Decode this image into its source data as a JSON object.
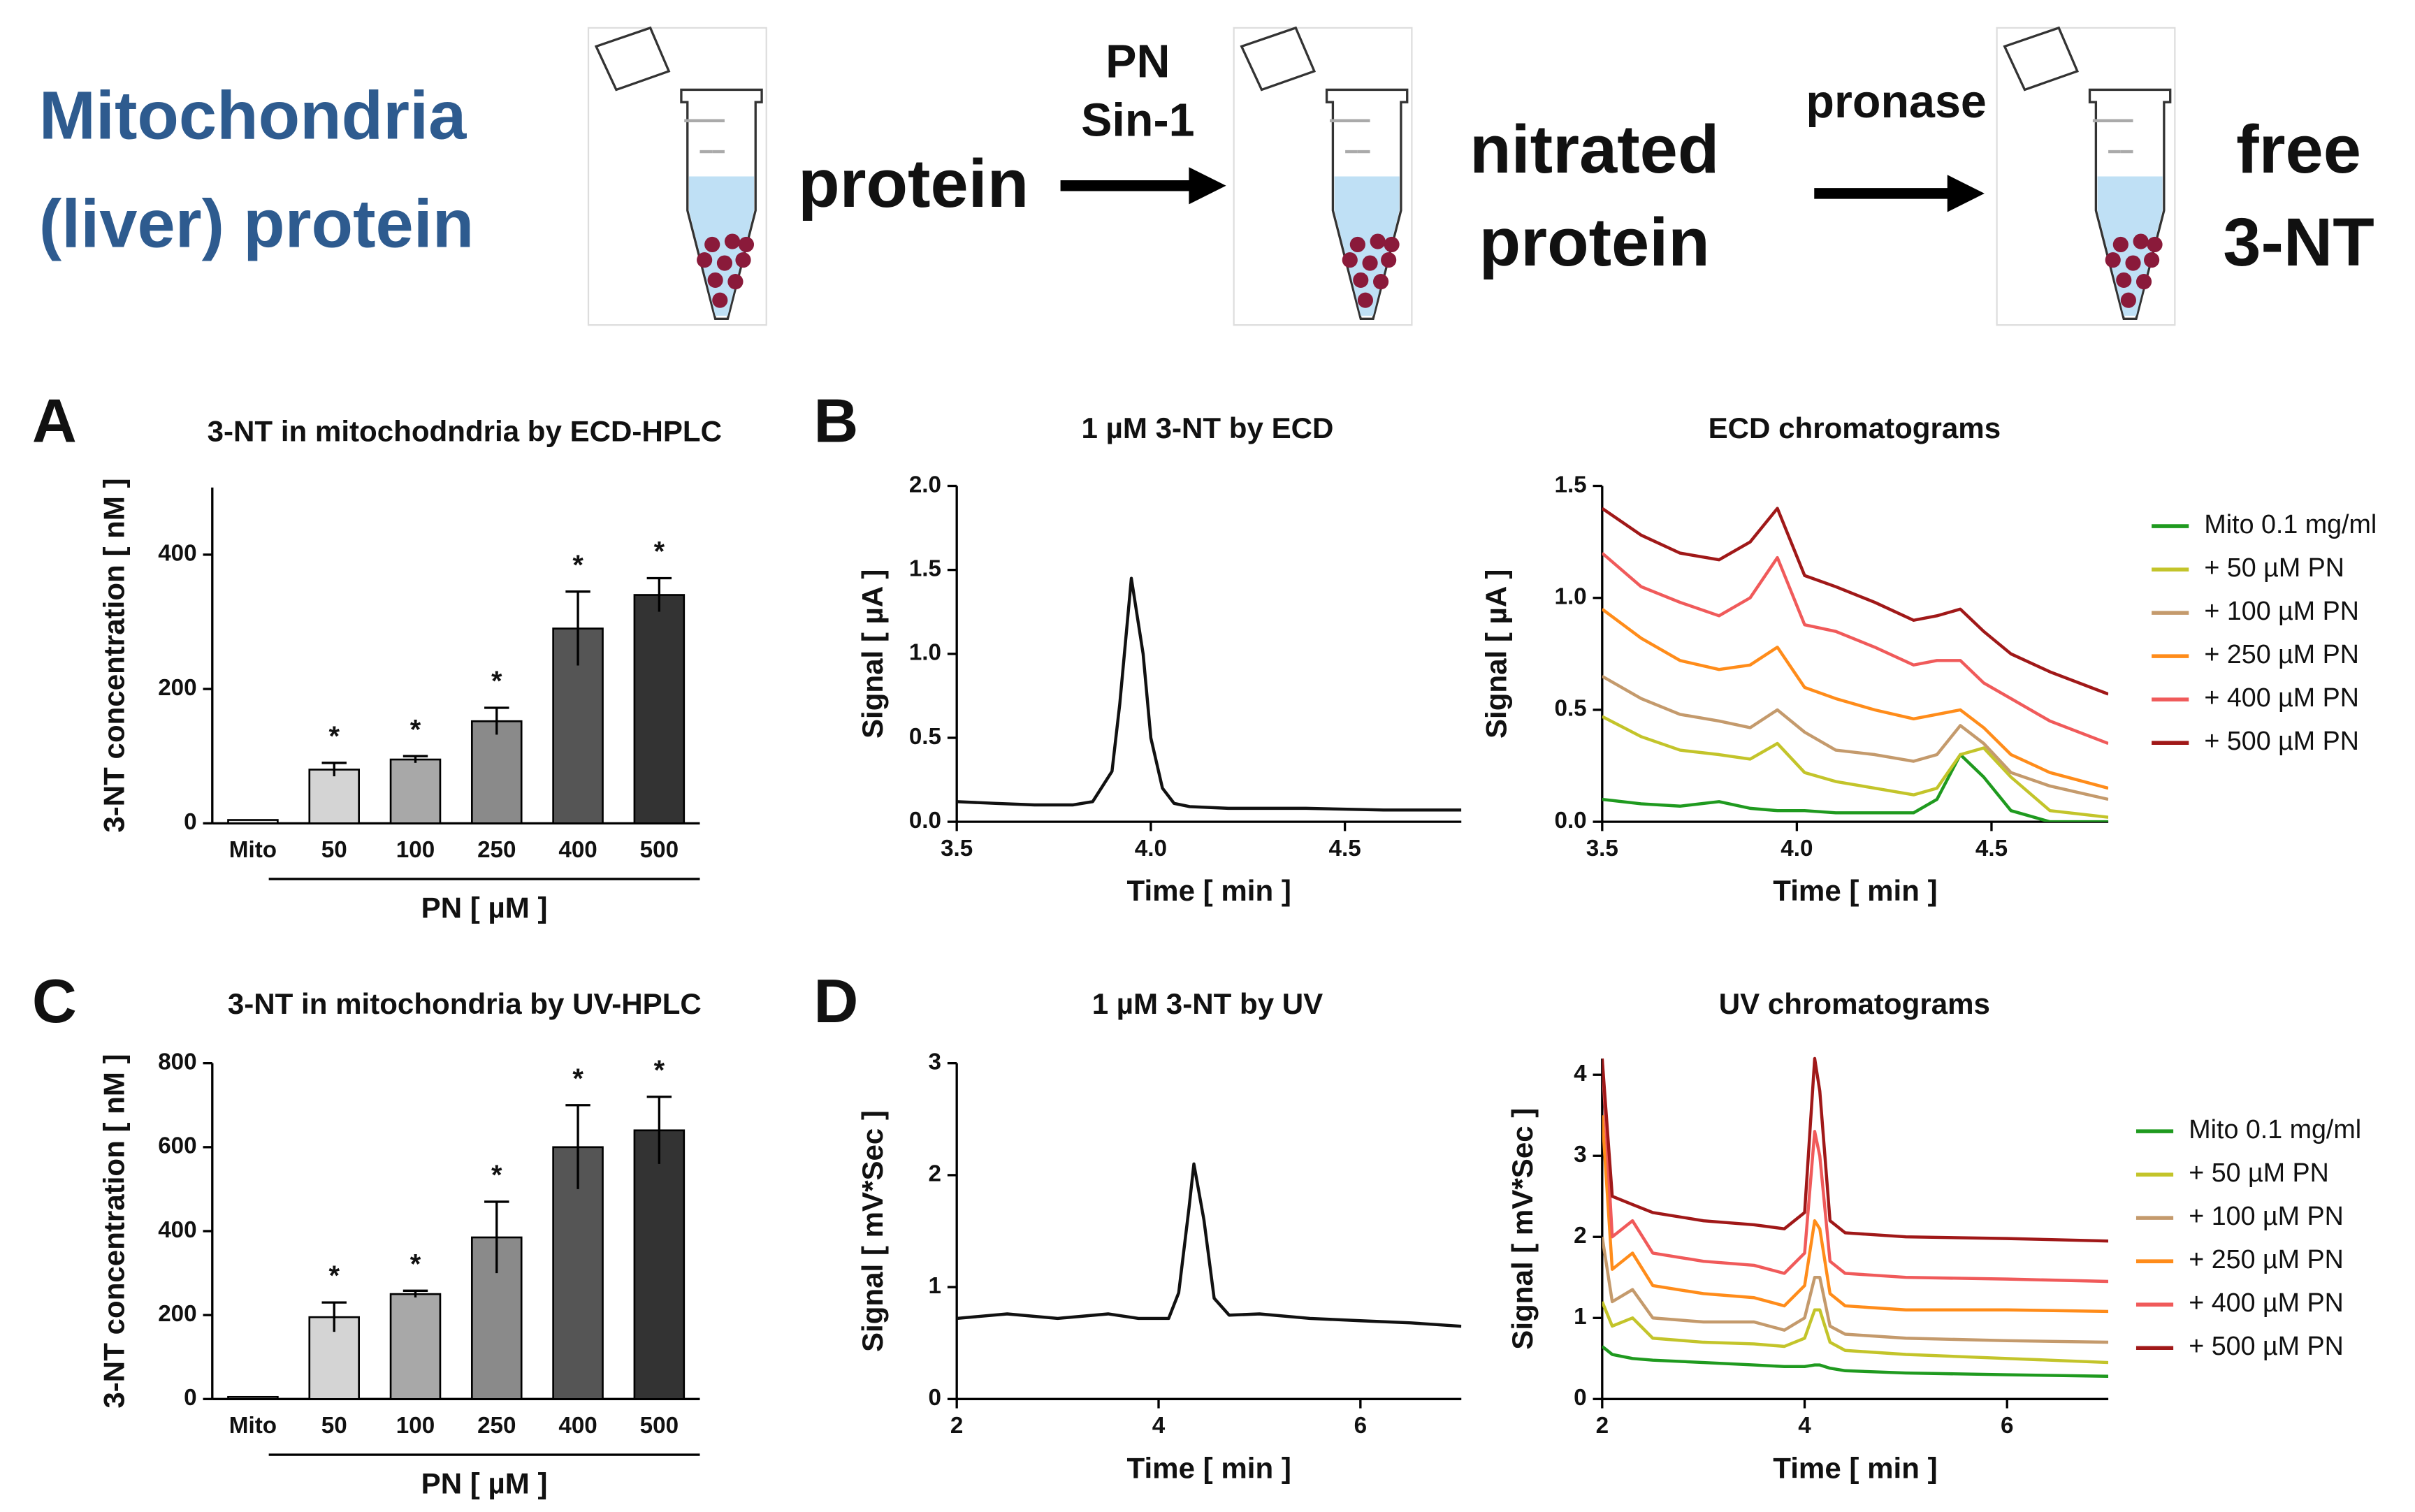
{
  "header": {
    "title_lines": [
      "Mitochondria",
      "(liver) protein"
    ],
    "step1": "protein",
    "reagent_lines": [
      "PN",
      "Sin-1"
    ],
    "step2_lines": [
      "nitrated",
      "protein"
    ],
    "enzyme": "pronase",
    "step3_lines": [
      "free",
      "3-NT"
    ]
  },
  "chart_data": [
    {
      "type": "bar",
      "panel": "A",
      "title": "3-NT in mitochodndria by ECD-HPLC",
      "xlabel": "PN [ µM ]",
      "ylabel": "3-NT concentration [ nM ]",
      "categories": [
        "Mito",
        "50",
        "100",
        "250",
        "400",
        "500"
      ],
      "values": [
        5,
        80,
        95,
        152,
        290,
        340
      ],
      "errors": [
        0,
        10,
        5,
        20,
        55,
        25
      ],
      "significance": [
        null,
        "*",
        "*",
        "*",
        "*",
        "*"
      ],
      "colors": [
        "#e8e8e8",
        "#d4d4d4",
        "#a8a8a8",
        "#8a8a8a",
        "#555555",
        "#333333"
      ],
      "ylim": [
        0,
        500
      ],
      "yticks": [
        0,
        200,
        400
      ]
    },
    {
      "type": "line",
      "panel": "B",
      "title": "1 µM 3-NT by ECD",
      "xlabel": "Time [ min ]",
      "ylabel": "Signal [ µA ]",
      "x": [
        3.5,
        3.6,
        3.7,
        3.8,
        3.85,
        3.9,
        3.92,
        3.95,
        3.98,
        4.0,
        4.03,
        4.06,
        4.1,
        4.2,
        4.4,
        4.6,
        4.8
      ],
      "series": [
        {
          "name": null,
          "color": "#111111",
          "values": [
            0.12,
            0.11,
            0.1,
            0.1,
            0.12,
            0.3,
            0.7,
            1.45,
            1.0,
            0.5,
            0.2,
            0.11,
            0.09,
            0.08,
            0.08,
            0.07,
            0.07
          ]
        }
      ],
      "xlim": [
        3.5,
        4.8
      ],
      "xticks": [
        3.5,
        {
          "value": 4,
          "label": "4.0"
        },
        4.5
      ],
      "ylim": [
        0,
        2
      ],
      "yticks": [
        {
          "value": 0,
          "label": "0.0"
        },
        0.5,
        {
          "value": 1,
          "label": "1.0"
        },
        1.5,
        {
          "value": 2,
          "label": "2.0"
        }
      ]
    },
    {
      "type": "line",
      "title": "ECD chromatograms",
      "xlabel": "Time [ min ]",
      "ylabel": "Signal [ µA ]",
      "legend": "right",
      "x": [
        3.5,
        3.6,
        3.7,
        3.8,
        3.88,
        3.95,
        4.02,
        4.1,
        4.2,
        4.3,
        4.36,
        4.42,
        4.48,
        4.55,
        4.65,
        4.8
      ],
      "series": [
        {
          "name": "Mito 0.1 mg/ml",
          "color": "#1f9a1f",
          "values": [
            0.1,
            0.08,
            0.07,
            0.09,
            0.06,
            0.05,
            0.05,
            0.04,
            0.04,
            0.04,
            0.1,
            0.3,
            0.2,
            0.05,
            0.0,
            0.0
          ]
        },
        {
          "name": "+ 50 µM PN",
          "color": "#c3c42a",
          "values": [
            0.47,
            0.38,
            0.32,
            0.3,
            0.28,
            0.35,
            0.22,
            0.18,
            0.15,
            0.12,
            0.15,
            0.3,
            0.33,
            0.2,
            0.05,
            0.02
          ]
        },
        {
          "name": "+ 100 µM PN",
          "color": "#c49a6c",
          "values": [
            0.65,
            0.55,
            0.48,
            0.45,
            0.42,
            0.5,
            0.4,
            0.32,
            0.3,
            0.27,
            0.3,
            0.43,
            0.35,
            0.22,
            0.16,
            0.1
          ]
        },
        {
          "name": "+ 250 µM PN",
          "color": "#ff8c1a",
          "values": [
            0.95,
            0.82,
            0.72,
            0.68,
            0.7,
            0.78,
            0.6,
            0.55,
            0.5,
            0.46,
            0.48,
            0.5,
            0.42,
            0.3,
            0.22,
            0.15
          ]
        },
        {
          "name": "+ 400 µM PN",
          "color": "#f05a5a",
          "values": [
            1.2,
            1.05,
            0.98,
            0.92,
            1.0,
            1.18,
            0.88,
            0.85,
            0.78,
            0.7,
            0.72,
            0.72,
            0.62,
            0.55,
            0.45,
            0.35
          ]
        },
        {
          "name": "+ 500 µM PN",
          "color": "#a01818",
          "values": [
            1.4,
            1.28,
            1.2,
            1.17,
            1.25,
            1.4,
            1.1,
            1.05,
            0.98,
            0.9,
            0.92,
            0.95,
            0.85,
            0.75,
            0.67,
            0.57
          ]
        }
      ],
      "xlim": [
        3.5,
        4.8
      ],
      "xticks": [
        3.5,
        {
          "value": 4,
          "label": "4.0"
        },
        4.5
      ],
      "ylim": [
        0,
        1.5
      ],
      "yticks": [
        {
          "value": 0,
          "label": "0.0"
        },
        0.5,
        {
          "value": 1,
          "label": "1.0"
        },
        1.5
      ]
    },
    {
      "type": "bar",
      "panel": "C",
      "title": "3-NT in mitochondria by UV-HPLC",
      "xlabel": "PN [ µM ]",
      "ylabel": "3-NT concentration [ nM ]",
      "categories": [
        "Mito",
        "50",
        "100",
        "250",
        "400",
        "500"
      ],
      "values": [
        5,
        195,
        250,
        385,
        600,
        640
      ],
      "errors": [
        0,
        35,
        8,
        85,
        100,
        80
      ],
      "significance": [
        null,
        "*",
        "*",
        "*",
        "*",
        "*"
      ],
      "colors": [
        "#e8e8e8",
        "#d4d4d4",
        "#a8a8a8",
        "#8a8a8a",
        "#555555",
        "#333333"
      ],
      "ylim": [
        0,
        800
      ],
      "yticks": [
        0,
        200,
        400,
        600,
        800
      ]
    },
    {
      "type": "line",
      "panel": "D",
      "title": "1 µM 3-NT by UV",
      "xlabel": "Time [ min ]",
      "ylabel": "Signal [ mV*Sec ]",
      "x": [
        2,
        2.5,
        3,
        3.5,
        3.8,
        4.1,
        4.2,
        4.3,
        4.35,
        4.45,
        4.55,
        4.7,
        5,
        5.5,
        6,
        6.5,
        7
      ],
      "series": [
        {
          "name": null,
          "color": "#111111",
          "values": [
            0.72,
            0.76,
            0.72,
            0.76,
            0.72,
            0.72,
            0.95,
            1.7,
            2.1,
            1.6,
            0.9,
            0.75,
            0.76,
            0.72,
            0.7,
            0.68,
            0.65
          ]
        }
      ],
      "xlim": [
        2,
        7
      ],
      "xticks": [
        2,
        4,
        6
      ],
      "ylim": [
        0,
        3
      ],
      "yticks": [
        0,
        1,
        2,
        3
      ]
    },
    {
      "type": "line",
      "title": "UV chromatograms",
      "xlabel": "Time [ min ]",
      "ylabel": "Signal [ mV*Sec ]",
      "legend": "right",
      "x": [
        2,
        2.1,
        2.3,
        2.5,
        3,
        3.5,
        3.8,
        4,
        4.1,
        4.15,
        4.25,
        4.4,
        5,
        6,
        7
      ],
      "series": [
        {
          "name": "Mito 0.1 mg/ml",
          "color": "#1f9a1f",
          "values": [
            0.65,
            0.55,
            0.5,
            0.48,
            0.45,
            0.42,
            0.4,
            0.4,
            0.42,
            0.42,
            0.38,
            0.35,
            0.32,
            0.3,
            0.28
          ]
        },
        {
          "name": "+ 50 µM PN",
          "color": "#c3c42a",
          "values": [
            1.2,
            0.9,
            1.0,
            0.75,
            0.7,
            0.68,
            0.65,
            0.75,
            1.1,
            1.1,
            0.7,
            0.6,
            0.55,
            0.5,
            0.45
          ]
        },
        {
          "name": "+ 100 µM PN",
          "color": "#c49a6c",
          "values": [
            2.0,
            1.2,
            1.35,
            1.0,
            0.95,
            0.95,
            0.85,
            1.0,
            1.5,
            1.5,
            0.9,
            0.8,
            0.75,
            0.72,
            0.7
          ]
        },
        {
          "name": "+ 250 µM PN",
          "color": "#ff8c1a",
          "values": [
            3.5,
            1.6,
            1.8,
            1.4,
            1.3,
            1.25,
            1.15,
            1.4,
            2.2,
            2.1,
            1.3,
            1.15,
            1.1,
            1.1,
            1.08
          ]
        },
        {
          "name": "+ 400 µM PN",
          "color": "#f05a5a",
          "values": [
            4.2,
            2.0,
            2.2,
            1.8,
            1.7,
            1.65,
            1.55,
            1.8,
            3.3,
            3.0,
            1.7,
            1.55,
            1.5,
            1.48,
            1.45
          ]
        },
        {
          "name": "+ 500 µM PN",
          "color": "#a01818",
          "values": [
            4.2,
            2.5,
            2.4,
            2.3,
            2.2,
            2.15,
            2.1,
            2.3,
            4.2,
            3.8,
            2.2,
            2.05,
            2.0,
            1.98,
            1.95
          ]
        }
      ],
      "xlim": [
        2,
        7
      ],
      "xticks": [
        2,
        4,
        6
      ],
      "ylim": [
        0,
        4.2
      ],
      "yticks": [
        0,
        1,
        2,
        3,
        4
      ]
    }
  ]
}
